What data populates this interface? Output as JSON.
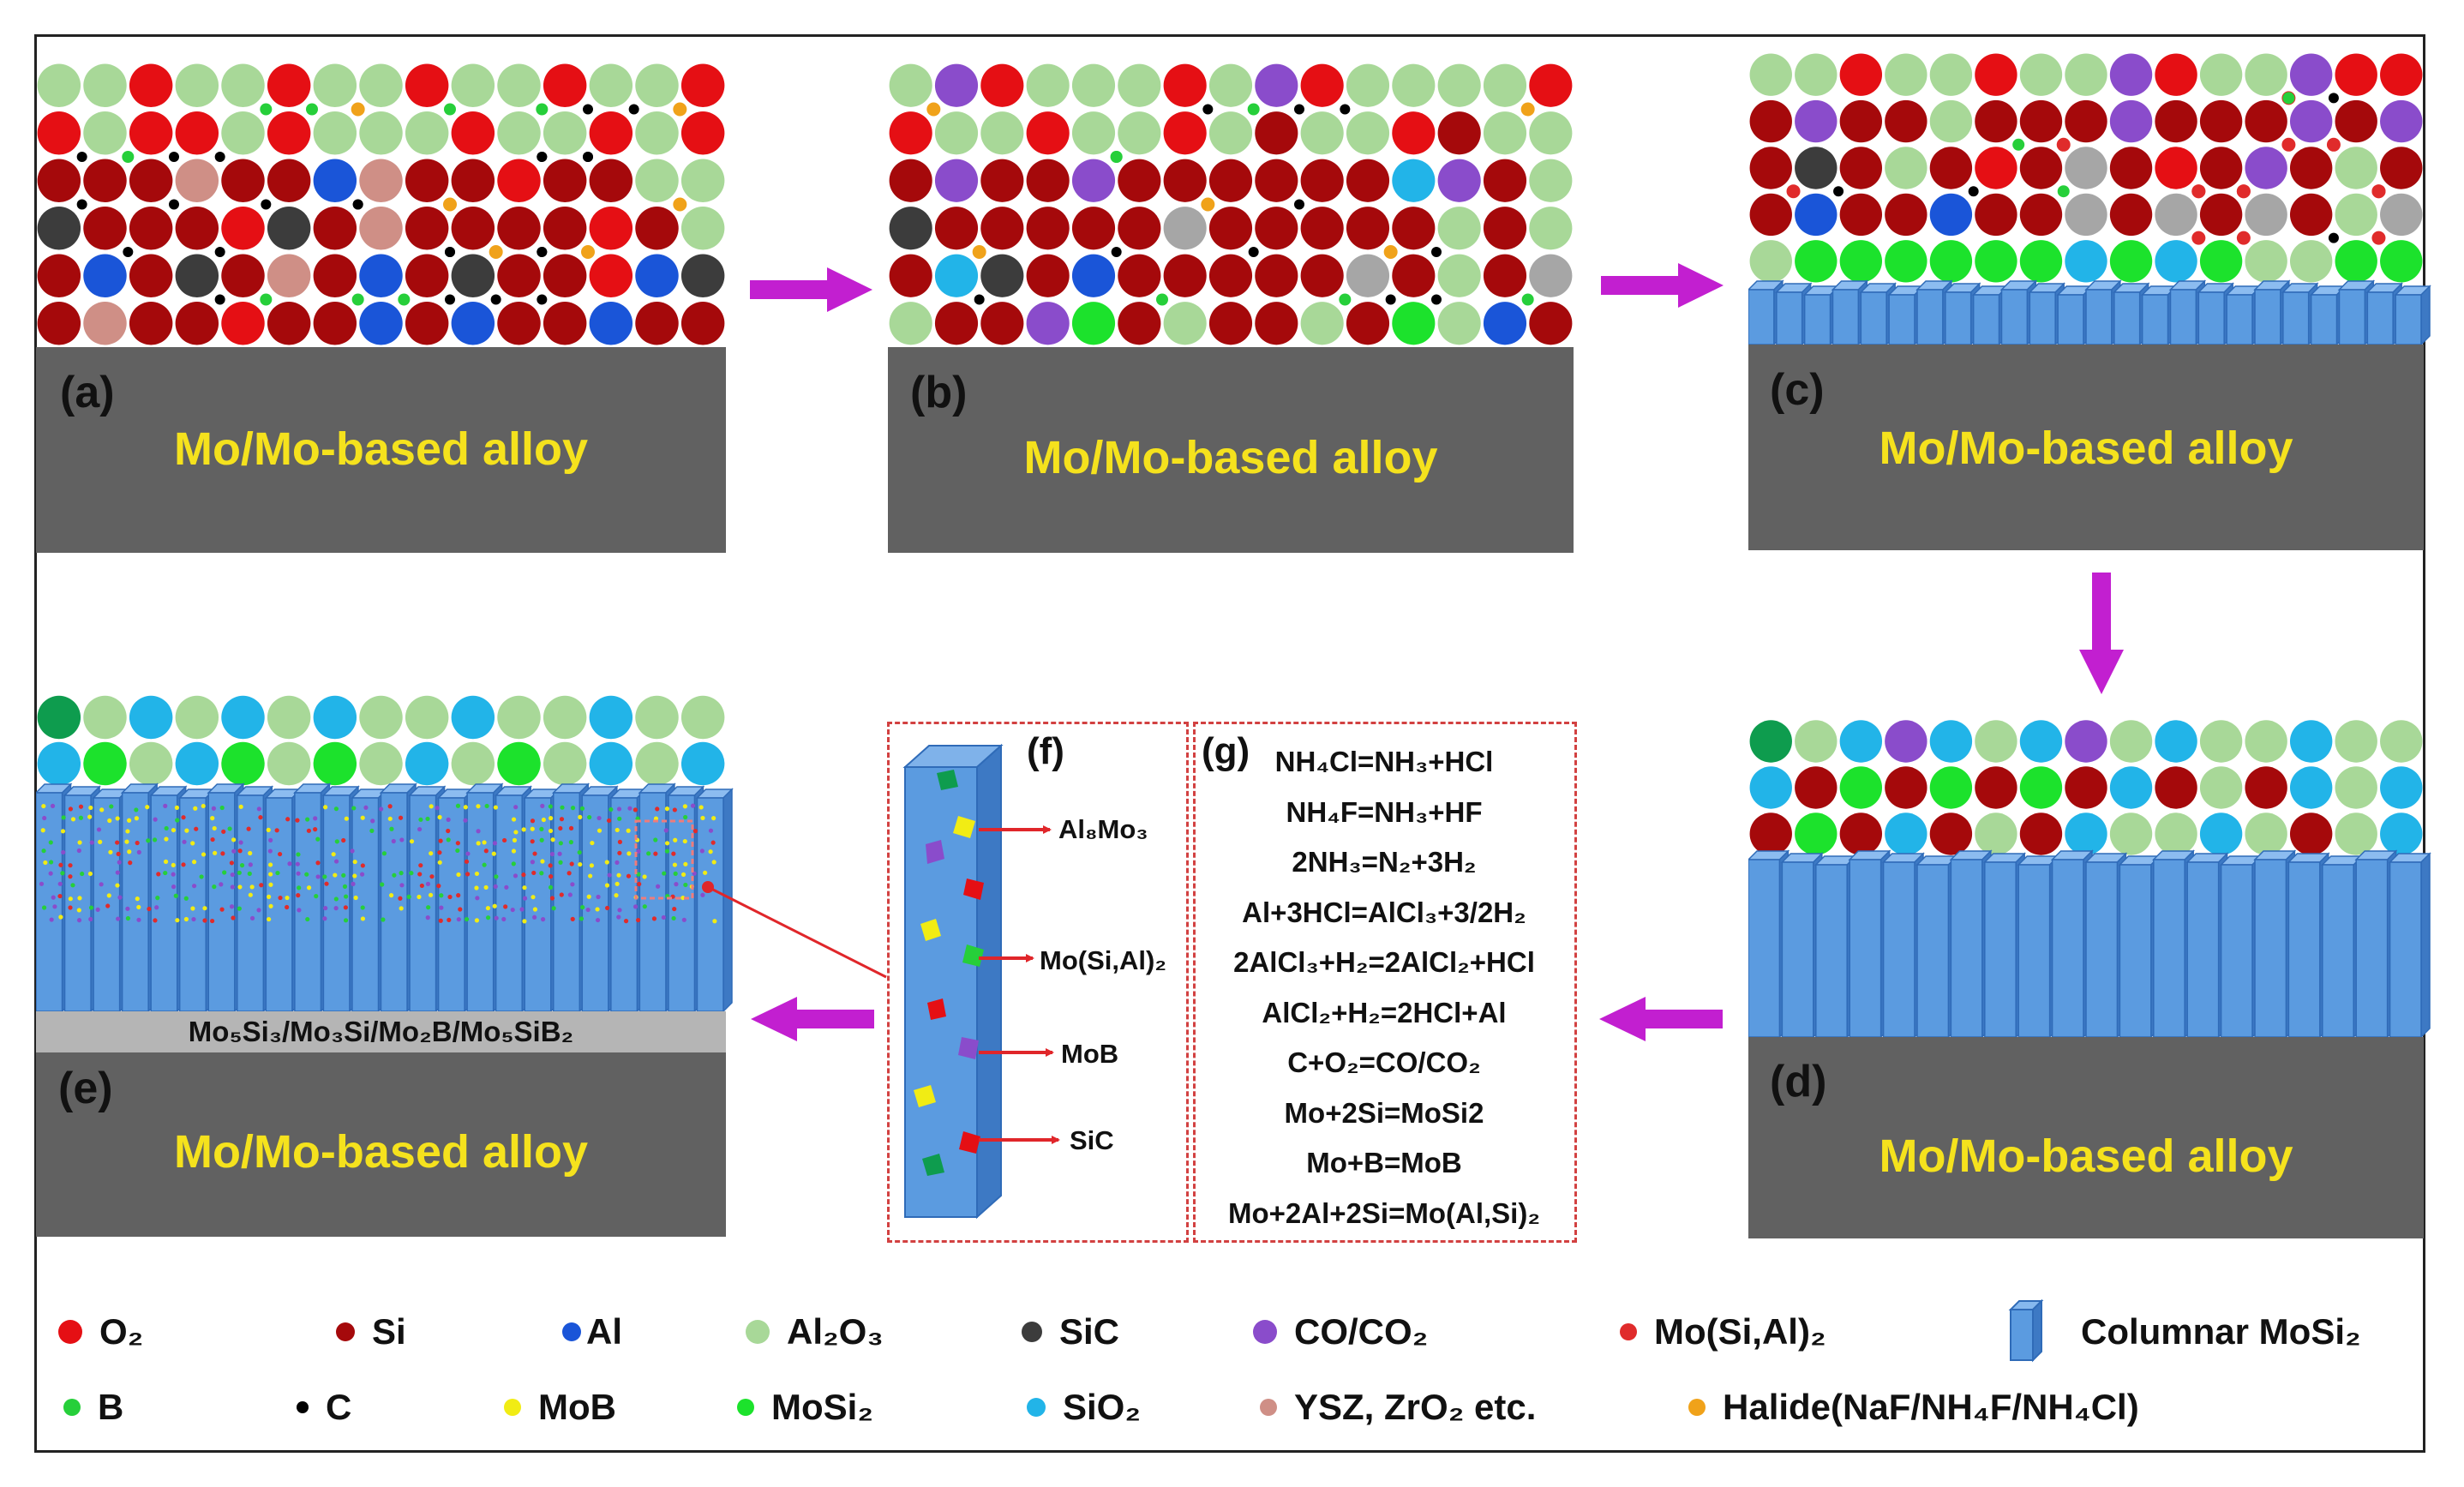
{
  "substrate_label": "Mo/Mo-based alloy",
  "colors": {
    "O2": "#e50f14",
    "Si": "#a5090b",
    "Al": "#1a55d8",
    "Al2O3": "#a8d898",
    "SiC": "#3c3c3c",
    "CO_CO2": "#8a4ccb",
    "MoSiAl": "#e02b2b",
    "B": "#26cf3a",
    "C": "#000000",
    "MoB": "#f1ec14",
    "MoSi2": "#1ce22c",
    "SiO2": "#22b4e8",
    "YSZ": "#cf8f86",
    "Halide": "#f0a21a",
    "gray_atom": "#a6a6a6",
    "dark_green": "#0e9c4e",
    "column_blue": "#4f8fd8",
    "arrow_magenta": "#c21fd0",
    "dashed_red": "#d24141"
  },
  "panels": {
    "a": {
      "letter": "(a)"
    },
    "b": {
      "letter": "(b)"
    },
    "c": {
      "letter": "(c)"
    },
    "d": {
      "letter": "(d)"
    },
    "e": {
      "letter": "(e)",
      "interlayer": "Mo₅Si₃/Mo₃Si/Mo₂B/Mo₅SiB₂"
    },
    "f": {
      "letter": "(f)",
      "labels": [
        "Al₈Mo₃",
        "Mo(Si,Al)₂",
        "MoB",
        "SiC"
      ]
    },
    "g": {
      "letter": "(g)"
    }
  },
  "equations": [
    "NH₄Cl=NH₃+HCl",
    "NH₄F=NH₃+HF",
    "2NH₃=N₂+3H₂",
    "Al+3HCl=AlCl₃+3/2H₂",
    "2AlCl₃+H₂=2AlCl₂+HCl",
    "AlCl₂+H₂=2HCl+Al",
    "C+O₂=CO/CO₂",
    "Mo+2Si=MoSi2",
    "Mo+B=MoB",
    "Mo+2Al+2Si=Mo(Al,Si)₂"
  ],
  "legend": {
    "row1": [
      {
        "label": "O₂",
        "color": "O2"
      },
      {
        "label": "Si",
        "color": "Si"
      },
      {
        "label": "Al",
        "color": "Al"
      },
      {
        "label": "Al₂O₃",
        "color": "Al2O3"
      },
      {
        "label": "SiC",
        "color": "SiC"
      },
      {
        "label": "CO/CO₂",
        "color": "CO_CO2"
      },
      {
        "label": "Mo(Si,Al)₂",
        "color": "MoSiAl"
      },
      {
        "label": "Columnar MoSi₂",
        "color": "column_blue"
      }
    ],
    "row2": [
      {
        "label": "B",
        "color": "B"
      },
      {
        "label": "C",
        "color": "C"
      },
      {
        "label": "MoB",
        "color": "MoB"
      },
      {
        "label": "MoSi₂",
        "color": "MoSi2"
      },
      {
        "label": "SiO₂",
        "color": "SiO2"
      },
      {
        "label": "YSZ, ZrO₂ etc.",
        "color": "YSZ"
      },
      {
        "label": "Halide(NaF/NH₄F/NH₄Cl)",
        "color": "Halide"
      }
    ]
  },
  "atom_rows": {
    "a": [
      "LLOLLOLLOLLOLLO",
      "OLOOLOLLLOLLOLO",
      "SSSYSSAYSSOSSLL",
      "KSSSOKSYSSSSOSL",
      "SASKSYSASKSSOAK",
      "SYSSOSSASASSASS"
    ],
    "b": [
      "LPOLLLOLPOLLLLO",
      "OLLOLLOLSLLOSLL",
      "SPSSPSSSSSSWPSL",
      "KSSSSSGSSSSSLSL",
      "SWKSASSSSSGSLSG",
      "LSSPMSLSSLSMLAS"
    ],
    "c": [
      "LLOLLOLLPOLLPOO",
      "SPSSLSSSPSSSPSP",
      "SKSLSOSGSOSPSLS",
      "SASSASSGSGSGSLG",
      "LMMMMMMWMWMLLMM"
    ],
    "d": [
      "ELWPWLWPLWLLWLL",
      "WSMSMSMSWSLSWLW",
      "SMSWSLSWLLWLSLW"
    ],
    "e": [
      "ELWLWLWLLWLLWLL",
      "WMLWMLMLWLMLWLW"
    ]
  }
}
